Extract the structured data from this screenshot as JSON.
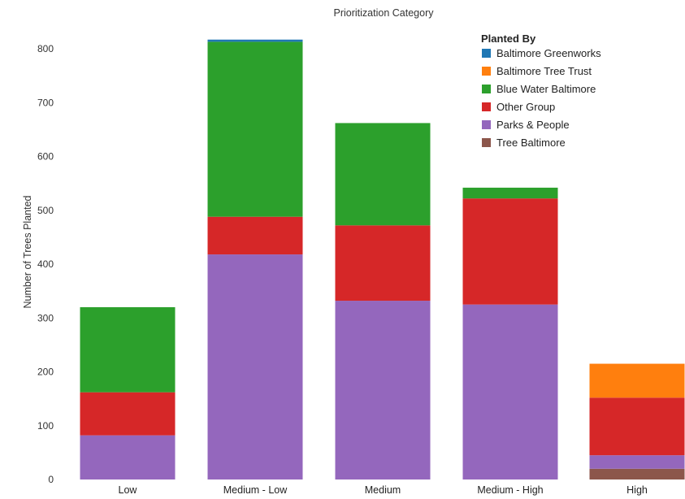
{
  "chart_data": {
    "type": "bar",
    "stacked": true,
    "title": "Prioritization Category",
    "xlabel": "",
    "ylabel": "Number of Trees Planted",
    "ylim": [
      0,
      840
    ],
    "yticks": [
      0,
      100,
      200,
      300,
      400,
      500,
      600,
      700,
      800
    ],
    "grid": false,
    "legend": {
      "title": "Planted By",
      "position": "top-right"
    },
    "categories": [
      "Low",
      "Medium - Low",
      "Medium",
      "Medium - High",
      "High"
    ],
    "series": [
      {
        "name": "Tree Baltimore",
        "color": "#8c564b",
        "values": [
          0,
          0,
          0,
          0,
          20
        ]
      },
      {
        "name": "Parks & People",
        "color": "#9467bd",
        "values": [
          82,
          418,
          332,
          325,
          25
        ]
      },
      {
        "name": "Other Group",
        "color": "#d62728",
        "values": [
          80,
          70,
          140,
          197,
          107
        ]
      },
      {
        "name": "Blue Water Baltimore",
        "color": "#2ca02c",
        "values": [
          158,
          325,
          190,
          20,
          0
        ]
      },
      {
        "name": "Baltimore Tree Trust",
        "color": "#ff7f0e",
        "values": [
          0,
          0,
          0,
          0,
          63
        ]
      },
      {
        "name": "Baltimore Greenworks",
        "color": "#1f77b4",
        "values": [
          0,
          4,
          0,
          0,
          0
        ]
      }
    ],
    "legend_order": [
      "Baltimore Greenworks",
      "Baltimore Tree Trust",
      "Blue Water Baltimore",
      "Other Group",
      "Parks & People",
      "Tree Baltimore"
    ]
  }
}
